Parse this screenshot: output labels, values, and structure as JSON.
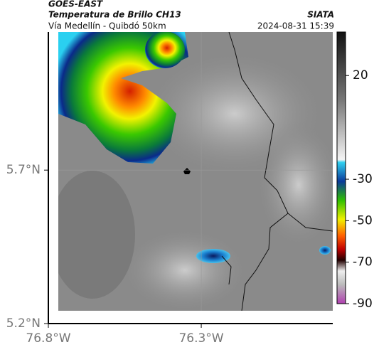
{
  "header": {
    "product": "GOES-EAST",
    "title": "Temperatura de Brillo CH13",
    "subtitle": "Vía Medellín - Quibdó 50km",
    "source": "SIATA",
    "datetime": "2024-08-31 15:39"
  },
  "map": {
    "latlim": [
      5.2,
      6.15
    ],
    "lonlim": [
      76.8,
      75.87
    ],
    "lat_ticks": [
      {
        "value": 5.7,
        "label": "5.7°N"
      },
      {
        "value": 5.2,
        "label": "5.2°N"
      }
    ],
    "lon_ticks": [
      {
        "value": 76.8,
        "label": "76.8°W"
      },
      {
        "value": 76.3,
        "label": "76.3°W"
      }
    ]
  },
  "colorbar": {
    "lim": [
      41,
      -90
    ],
    "ticks": [
      20,
      -30,
      -50,
      -70,
      -90
    ]
  }
}
